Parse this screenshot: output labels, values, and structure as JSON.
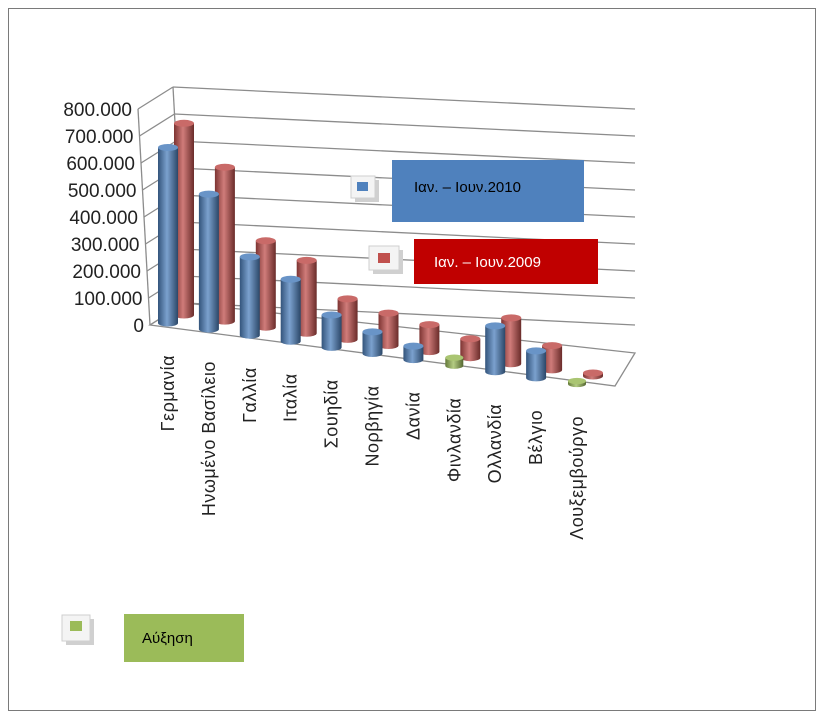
{
  "chart_data": {
    "type": "bar",
    "title": "",
    "xlabel": "",
    "ylabel": "",
    "ylim": [
      0,
      800000
    ],
    "yticks": [
      "0",
      "100.000",
      "200.000",
      "300.000",
      "400.000",
      "500.000",
      "600.000",
      "700.000",
      "800.000"
    ],
    "categories": [
      "Γερμανία",
      "Ηνωμένο Βασίλειο",
      "Γαλλία",
      "Ιταλία",
      "Σουηδία",
      "Νορβηγία",
      "Δανία",
      "Φινλανδία",
      "Ολλανδία",
      "Βέλγιο",
      "Λουξεμβούργο"
    ],
    "grid": true,
    "series": [
      {
        "name": "Ιαν. – Ιουν.2010",
        "color": "#4f81bd",
        "values": [
          650000,
          500000,
          290000,
          230000,
          120000,
          80000,
          50000,
          0,
          170000,
          100000,
          0
        ]
      },
      {
        "name": "Ιαν. – Ιουν.2009",
        "color": "#c0504d",
        "values": [
          710000,
          570000,
          320000,
          270000,
          150000,
          120000,
          100000,
          70000,
          170000,
          90000,
          3000
        ]
      },
      {
        "name": "Αύξηση",
        "color": "#9bbb59",
        "values": [
          0,
          0,
          0,
          0,
          0,
          0,
          0,
          30000,
          0,
          0,
          3000
        ]
      }
    ],
    "legend": [
      {
        "label": "Ιαν. – Ιουν.2010",
        "bg": "#4f81bd",
        "text_color": "#000000"
      },
      {
        "label": "Ιαν. – Ιουν.2009",
        "bg": "#c00000",
        "text_color": "#ffffff"
      },
      {
        "label": "Αύξηση",
        "bg": "#9bbb59",
        "text_color": "#000000"
      }
    ]
  }
}
